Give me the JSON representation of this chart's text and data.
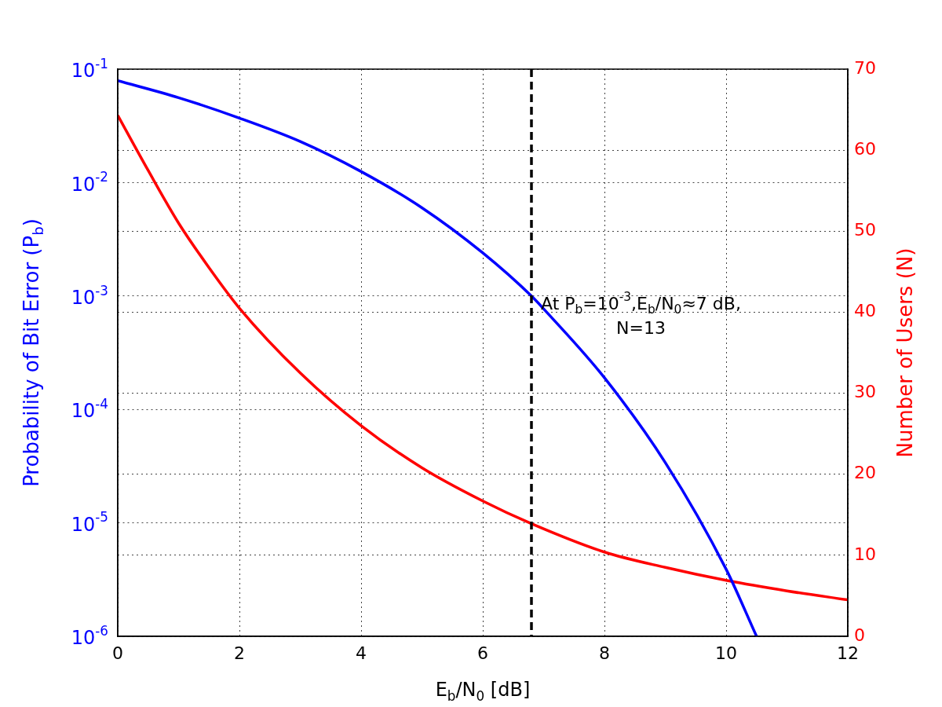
{
  "chart_data": {
    "type": "line",
    "xlabel": "E$_{b}$/N$_{0}$ [dB]",
    "ylabel": "Probability of Bit Error (P$_{b}$)",
    "y2label": "Number of Users (N)",
    "series": [
      {
        "color": "#0000ff",
        "x": [
          0,
          1,
          2,
          3,
          4,
          5,
          6,
          6.8,
          7,
          8,
          9,
          10,
          10.5
        ],
        "values": [
          0.079,
          0.056,
          0.037,
          0.023,
          0.0125,
          0.006,
          0.0024,
          0.001,
          0.00077,
          0.00019,
          3.4e-05,
          3.9e-06,
          1e-06
        ]
      },
      {
        "color": "#ff0000",
        "axis": "y2",
        "x": [
          0,
          0.5,
          1,
          1.5,
          2,
          3,
          4,
          5,
          6,
          6.8,
          8,
          9,
          10,
          11,
          12
        ],
        "values": [
          64.3,
          57.5,
          51,
          45.5,
          40.5,
          32.5,
          26,
          20.8,
          16.7,
          13.9,
          10.4,
          8.5,
          6.9,
          5.6,
          4.5
        ]
      }
    ],
    "xlim": [
      0,
      12
    ],
    "xticks": [
      0,
      2,
      4,
      6,
      8,
      10,
      12
    ],
    "ylim": [
      1e-06,
      0.1
    ],
    "yticks": [
      {
        "value": 1e-06,
        "label": "10$^{-6}$"
      },
      {
        "value": 1e-05,
        "label": "10$^{-5}$"
      },
      {
        "value": 0.0001,
        "label": "10$^{-4}$"
      },
      {
        "value": 0.001,
        "label": "10$^{-3}$"
      },
      {
        "value": 0.01,
        "label": "10$^{-2}$"
      },
      {
        "value": 0.1,
        "label": "10$^{-1}$"
      }
    ],
    "y2lim": [
      0,
      70
    ],
    "y2ticks": [
      0,
      10,
      20,
      30,
      40,
      50,
      60,
      70
    ],
    "log": "y",
    "grid": true,
    "legend": false,
    "marker": "none",
    "line_style": "solid",
    "ref_lines": [
      {
        "axis": "x",
        "value": 6.8,
        "color": "#000000",
        "line_style": "dashed"
      }
    ],
    "annotations": [
      "At P$_{b}$=10$^{-3}$,E$_{b}$/N$_{0}$≈7 dB, N=13"
    ]
  }
}
